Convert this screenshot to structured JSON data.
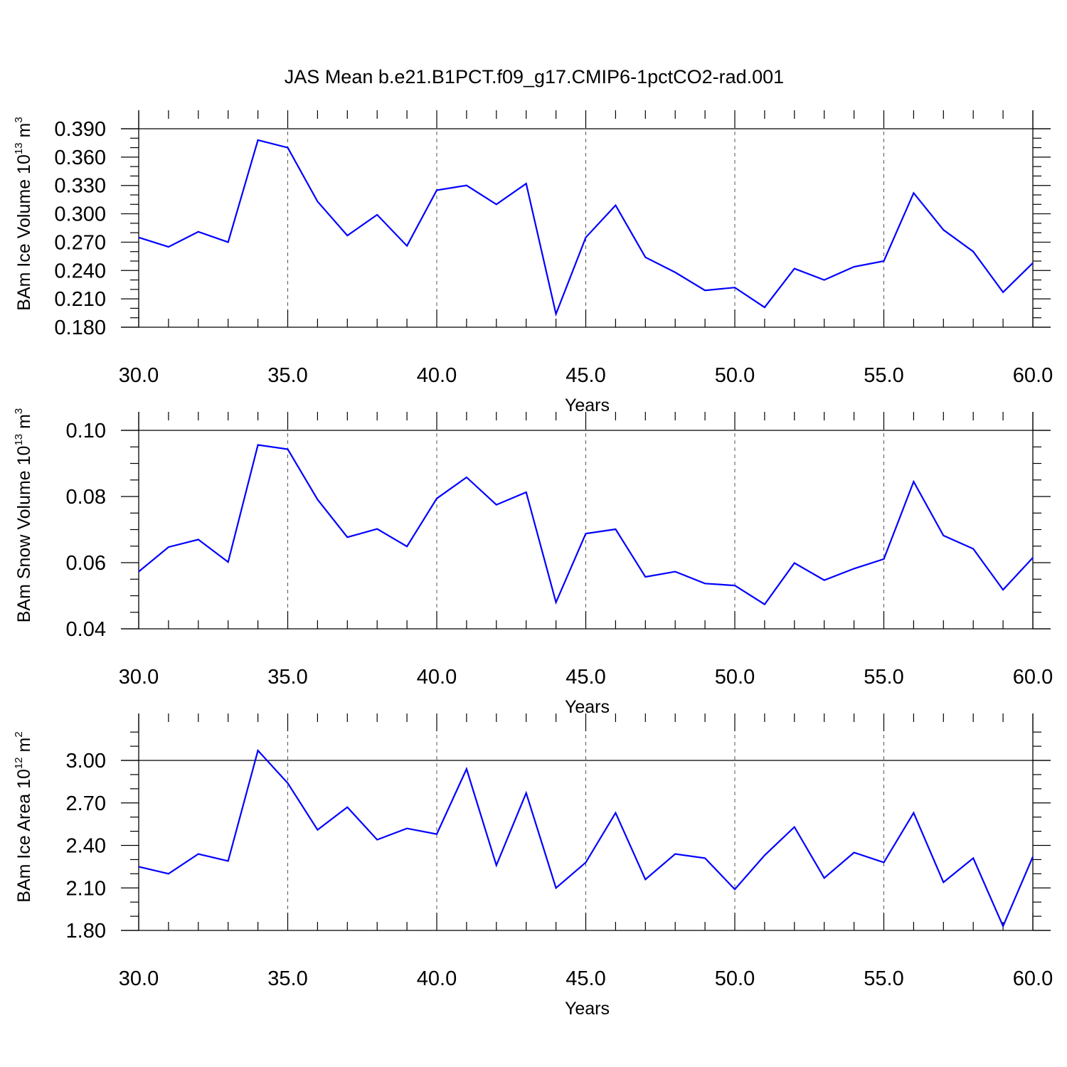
{
  "title": "JAS Mean b.e21.B1PCT.f09_g17.CMIP6-1pctCO2-rad.001",
  "colors": {
    "series": "#0000ff",
    "axis": "#000000",
    "grid": "#555555"
  },
  "chart_data": [
    {
      "type": "line",
      "xlabel": "Years",
      "ylabel": {
        "text": "BAm Ice Volume 10",
        "sup": "13",
        "unit": " m",
        "unit_sup": "3"
      },
      "xlim": [
        30,
        60
      ],
      "ylim": [
        0.18,
        0.39
      ],
      "ylim_frame": [
        0.18,
        0.39
      ],
      "xticks": [
        30,
        35,
        40,
        45,
        50,
        55,
        60
      ],
      "xtick_labels": [
        "30.0",
        "35.0",
        "40.0",
        "45.0",
        "50.0",
        "55.0",
        "60.0"
      ],
      "yticks": [
        0.18,
        0.21,
        0.24,
        0.27,
        0.3,
        0.33,
        0.36,
        0.39
      ],
      "ytick_labels": [
        "0.180",
        "0.210",
        "0.240",
        "0.270",
        "0.300",
        "0.330",
        "0.360",
        "0.390"
      ],
      "yminor_step": 0.01,
      "grid": "vertical dashed",
      "series": [
        {
          "x": [
            30,
            31,
            32,
            33,
            34,
            35,
            36,
            37,
            38,
            39,
            40,
            41,
            42,
            43,
            44,
            45,
            46,
            47,
            48,
            49,
            50,
            51,
            52,
            53,
            54,
            55,
            56,
            57,
            58,
            59,
            60
          ],
          "values": [
            0.275,
            0.265,
            0.281,
            0.27,
            0.378,
            0.37,
            0.313,
            0.277,
            0.299,
            0.266,
            0.325,
            0.33,
            0.31,
            0.332,
            0.194,
            0.275,
            0.309,
            0.254,
            0.238,
            0.219,
            0.222,
            0.201,
            0.242,
            0.23,
            0.244,
            0.25,
            0.322,
            0.283,
            0.26,
            0.217,
            0.248
          ]
        }
      ]
    },
    {
      "type": "line",
      "xlabel": "Years",
      "ylabel": {
        "text": "BAm Snow Volume 10",
        "sup": "13",
        "unit": " m",
        "unit_sup": "3"
      },
      "xlim": [
        30,
        60
      ],
      "ylim": [
        0.04,
        0.1
      ],
      "ylim_frame": [
        0.04,
        0.1
      ],
      "xticks": [
        30,
        35,
        40,
        45,
        50,
        55,
        60
      ],
      "xtick_labels": [
        "30.0",
        "35.0",
        "40.0",
        "45.0",
        "50.0",
        "55.0",
        "60.0"
      ],
      "yticks": [
        0.04,
        0.06,
        0.08,
        0.1
      ],
      "ytick_labels": [
        "0.04",
        "0.06",
        "0.08",
        "0.10"
      ],
      "yminor_step": 0.005,
      "grid": "vertical dashed",
      "series": [
        {
          "x": [
            30,
            31,
            32,
            33,
            34,
            35,
            36,
            37,
            38,
            39,
            40,
            41,
            42,
            43,
            44,
            45,
            46,
            47,
            48,
            49,
            50,
            51,
            52,
            53,
            54,
            55,
            56,
            57,
            58,
            59,
            60
          ],
          "values": [
            0.0573,
            0.0647,
            0.067,
            0.0602,
            0.0956,
            0.0943,
            0.0791,
            0.0677,
            0.0702,
            0.0649,
            0.0794,
            0.0858,
            0.0775,
            0.0813,
            0.048,
            0.0688,
            0.0701,
            0.0557,
            0.0573,
            0.0537,
            0.0531,
            0.0474,
            0.0599,
            0.0547,
            0.0582,
            0.0611,
            0.0845,
            0.0682,
            0.0642,
            0.0518,
            0.0615
          ]
        }
      ]
    },
    {
      "type": "line",
      "xlabel": "Years",
      "ylabel": {
        "text": "BAm Ice Area 10",
        "sup": "12",
        "unit": " m",
        "unit_sup": "2"
      },
      "xlim": [
        30,
        60
      ],
      "ylim": [
        1.8,
        3.0
      ],
      "ylim_frame": [
        1.8,
        3.2
      ],
      "xticks": [
        30,
        35,
        40,
        45,
        50,
        55,
        60
      ],
      "xtick_labels": [
        "30.0",
        "35.0",
        "40.0",
        "45.0",
        "50.0",
        "55.0",
        "60.0"
      ],
      "yticks": [
        1.8,
        2.1,
        2.4,
        2.7,
        3.0
      ],
      "ytick_labels": [
        "1.80",
        "2.10",
        "2.40",
        "2.70",
        "3.00"
      ],
      "yminor_step": 0.1,
      "grid": "vertical dashed",
      "series": [
        {
          "x": [
            30,
            31,
            32,
            33,
            34,
            35,
            36,
            37,
            38,
            39,
            40,
            41,
            42,
            43,
            44,
            45,
            46,
            47,
            48,
            49,
            50,
            51,
            52,
            53,
            54,
            55,
            56,
            57,
            58,
            59,
            60
          ],
          "values": [
            2.25,
            2.2,
            2.34,
            2.29,
            3.07,
            2.84,
            2.51,
            2.67,
            2.44,
            2.52,
            2.48,
            2.94,
            2.26,
            2.77,
            2.1,
            2.28,
            2.63,
            2.16,
            2.34,
            2.31,
            2.09,
            2.33,
            2.53,
            2.17,
            2.35,
            2.28,
            2.63,
            2.14,
            2.31,
            1.83,
            2.32
          ]
        }
      ]
    }
  ]
}
